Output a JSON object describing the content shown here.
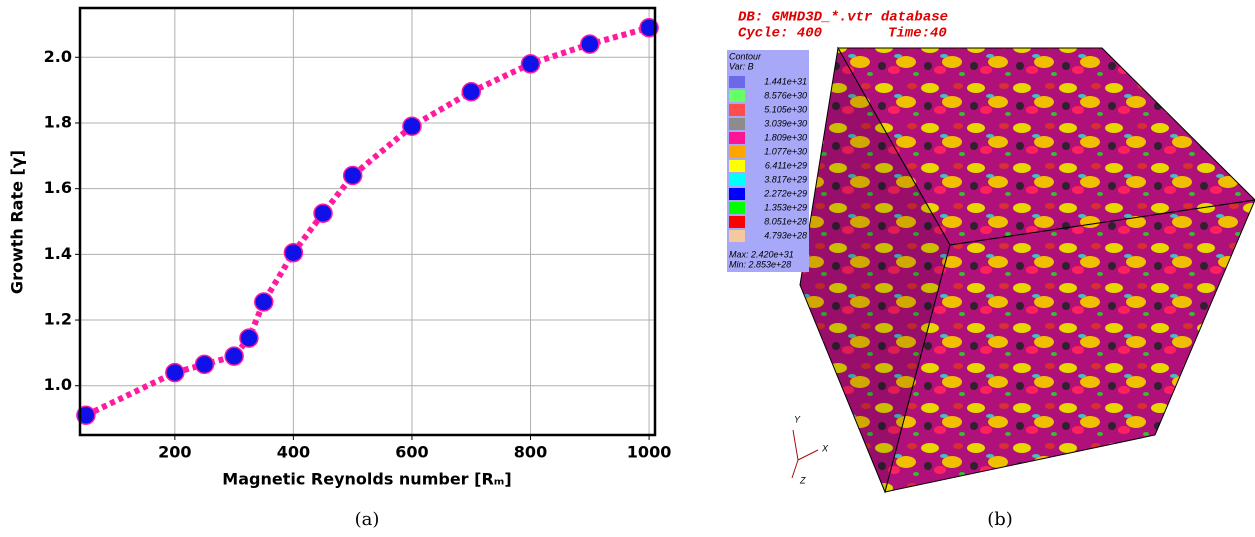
{
  "chart_data": {
    "type": "line",
    "xlabel": "Magnetic Reynolds number [Rₘ]",
    "ylabel": "Growth Rate [γ]",
    "x": [
      50,
      200,
      250,
      300,
      325,
      350,
      400,
      450,
      500,
      600,
      700,
      800,
      900,
      1000
    ],
    "series": [
      {
        "color": "#ff1aa0",
        "marker_color": "#1010e8",
        "values": [
          0.91,
          1.04,
          1.065,
          1.09,
          1.145,
          1.255,
          1.405,
          1.525,
          1.64,
          1.79,
          1.895,
          1.98,
          2.04,
          2.09
        ]
      }
    ],
    "xlim": [
      40,
      1010
    ],
    "ylim": [
      0.85,
      2.15
    ],
    "xticks": [
      200,
      400,
      600,
      800,
      1000
    ],
    "yticks": [
      {
        "value": 1,
        "label": "1.0"
      },
      1.2,
      1.4,
      1.6,
      1.8,
      {
        "value": 2,
        "label": "2.0"
      }
    ],
    "grid": true
  },
  "panel_b": {
    "db": "DB: GMHD3D_*.vtr database",
    "cycle": "Cycle: 400",
    "time": "Time:40",
    "legend_title": "Contour",
    "legend_var": "Var: B",
    "levels": [
      {
        "label": "1.441e+31",
        "color": "#6a6ae8"
      },
      {
        "label": "8.576e+30",
        "color": "#66ff66"
      },
      {
        "label": "5.105e+30",
        "color": "#ff4c4c"
      },
      {
        "label": "3.039e+30",
        "color": "#8c8c8c"
      },
      {
        "label": "1.809e+30",
        "color": "#ff1493"
      },
      {
        "label": "1.077e+30",
        "color": "#ffa500"
      },
      {
        "label": "6.411e+29",
        "color": "#ffff00"
      },
      {
        "label": "3.817e+29",
        "color": "#00ffff"
      },
      {
        "label": "2.272e+29",
        "color": "#0000ff"
      },
      {
        "label": "1.353e+29",
        "color": "#00ff00"
      },
      {
        "label": "8.051e+28",
        "color": "#ff0000"
      },
      {
        "label": "4.793e+28",
        "color": "#f5c8a0"
      }
    ],
    "max": "Max: 2.420e+31",
    "min": "Min: 2.853e+28",
    "axis_y": "Y",
    "axis_x": "X",
    "axis_z": "Z"
  },
  "captions": [
    "(a)",
    "(b)"
  ]
}
